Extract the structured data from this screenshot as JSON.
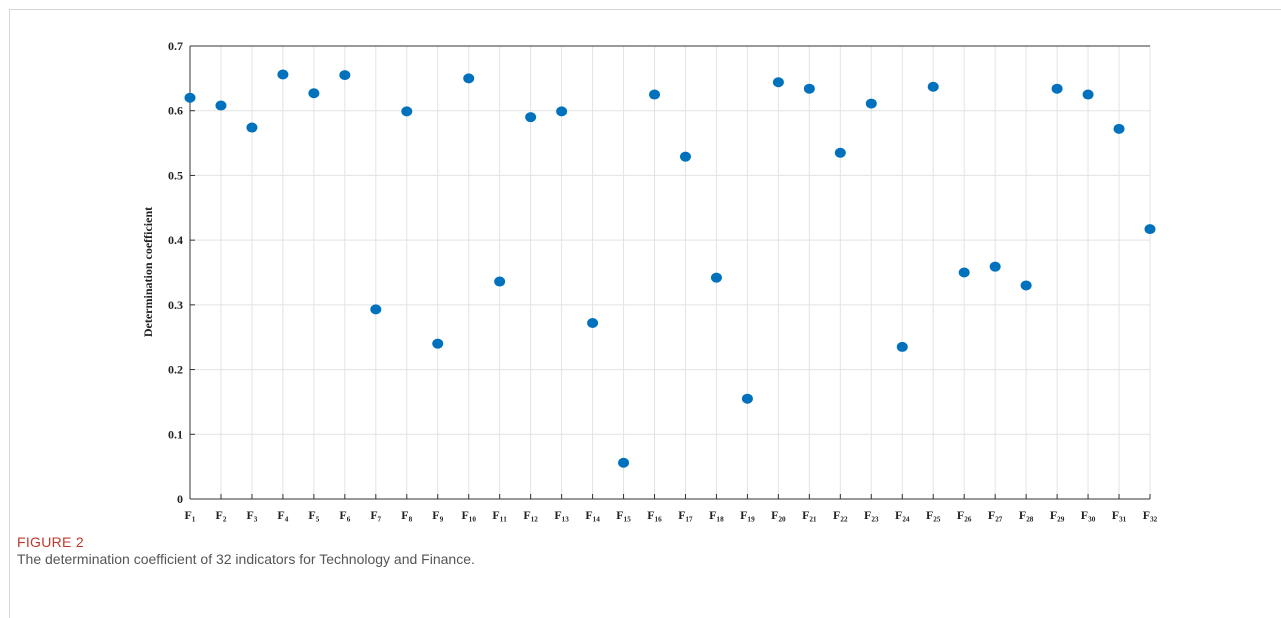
{
  "chart_data": {
    "type": "scatter",
    "ylabel": "Determination coefficient",
    "categories": [
      "F₁",
      "F₂",
      "F₃",
      "F₄",
      "F₅",
      "F₆",
      "F₇",
      "F₈",
      "F₉",
      "F₁₀",
      "F₁₁",
      "F₁₂",
      "F₁₃",
      "F₁₄",
      "F₁₅",
      "F₁₆",
      "F₁₇",
      "F₁₈",
      "F₁₉",
      "F₂₀",
      "F₂₁",
      "F₂₂",
      "F₂₃",
      "F₂₄",
      "F₂₅",
      "F₂₆",
      "F₂₇",
      "F₂₈",
      "F₂₉",
      "F₃₀",
      "F₃₁",
      "F₃₂"
    ],
    "values": [
      0.62,
      0.608,
      0.574,
      0.656,
      0.627,
      0.655,
      0.293,
      0.599,
      0.24,
      0.65,
      0.336,
      0.59,
      0.599,
      0.272,
      0.056,
      0.625,
      0.529,
      0.342,
      0.155,
      0.644,
      0.634,
      0.535,
      0.611,
      0.235,
      0.637,
      0.35,
      0.359,
      0.33,
      0.634,
      0.625,
      0.572,
      0.417
    ],
    "color": "#0072bd",
    "ylim": [
      0,
      0.7
    ],
    "yticks": [
      0,
      0.1,
      0.2,
      0.3,
      0.4,
      0.5,
      0.6,
      0.7
    ],
    "grid": true
  },
  "figure": {
    "label": "FIGURE 2",
    "caption": "The determination coefficient of 32 indicators for Technology and Finance."
  }
}
